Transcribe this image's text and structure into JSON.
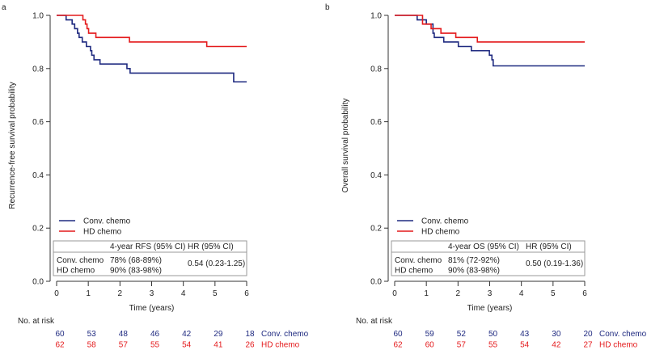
{
  "chart_data": [
    {
      "type": "line",
      "panel_label": "a",
      "ylabel": "Recurrence-free survival probability",
      "xlabel": "Time (years)",
      "xlim": [
        0,
        6
      ],
      "ylim": [
        0,
        1
      ],
      "xticks": [
        "0",
        "1",
        "2",
        "3",
        "4",
        "5",
        "6"
      ],
      "yticks": [
        "0.0",
        "0.2",
        "0.4",
        "0.6",
        "0.8",
        "1.0"
      ],
      "legend": [
        "Conv. chemo",
        "HD chemo"
      ],
      "series": [
        {
          "name": "Conv. chemo",
          "color": "#1f2a80",
          "steps": [
            [
              0,
              1.0
            ],
            [
              0.3,
              0.983
            ],
            [
              0.49,
              0.967
            ],
            [
              0.57,
              0.95
            ],
            [
              0.66,
              0.933
            ],
            [
              0.71,
              0.917
            ],
            [
              0.81,
              0.9
            ],
            [
              0.94,
              0.883
            ],
            [
              1.07,
              0.867
            ],
            [
              1.11,
              0.85
            ],
            [
              1.18,
              0.833
            ],
            [
              1.37,
              0.817
            ],
            [
              2.22,
              0.8
            ],
            [
              2.32,
              0.783
            ],
            [
              5.59,
              0.75
            ],
            [
              6,
              0.75
            ]
          ]
        },
        {
          "name": "HD chemo",
          "color": "#e41a1c",
          "steps": [
            [
              0,
              1.0
            ],
            [
              0.83,
              0.983
            ],
            [
              0.91,
              0.967
            ],
            [
              0.96,
              0.95
            ],
            [
              1.01,
              0.933
            ],
            [
              1.24,
              0.917
            ],
            [
              2.3,
              0.9
            ],
            [
              4.74,
              0.883
            ],
            [
              6,
              0.883
            ]
          ]
        }
      ],
      "table": {
        "headers": [
          "",
          "4-year RFS (95% CI)",
          "HR (95% CI)"
        ],
        "rows": [
          [
            "Conv. chemo",
            "78% (68-89%)"
          ],
          [
            "HD chemo",
            "90% (83-98%)"
          ]
        ],
        "hr": "0.54 (0.23-1.25)"
      },
      "risk": {
        "title": "No. at risk",
        "rows": [
          {
            "name": "Conv. chemo",
            "values": [
              "60",
              "53",
              "48",
              "46",
              "42",
              "29",
              "18"
            ]
          },
          {
            "name": "HD chemo",
            "values": [
              "62",
              "58",
              "57",
              "55",
              "54",
              "41",
              "26"
            ]
          }
        ]
      }
    },
    {
      "type": "line",
      "panel_label": "b",
      "ylabel": "Overall survival probability",
      "xlabel": "Time (years)",
      "xlim": [
        0,
        6
      ],
      "ylim": [
        0,
        1
      ],
      "xticks": [
        "0",
        "1",
        "2",
        "3",
        "4",
        "5",
        "6"
      ],
      "yticks": [
        "0.0",
        "0.2",
        "0.4",
        "0.6",
        "0.8",
        "1.0"
      ],
      "legend": [
        "Conv. chemo",
        "HD chemo"
      ],
      "series": [
        {
          "name": "Conv. chemo",
          "color": "#1f2a80",
          "steps": [
            [
              0,
              1.0
            ],
            [
              0.71,
              0.983
            ],
            [
              1.0,
              0.967
            ],
            [
              1.21,
              0.933
            ],
            [
              1.25,
              0.917
            ],
            [
              1.55,
              0.9
            ],
            [
              2.01,
              0.883
            ],
            [
              2.42,
              0.867
            ],
            [
              2.99,
              0.85
            ],
            [
              3.07,
              0.833
            ],
            [
              3.11,
              0.81
            ],
            [
              6,
              0.81
            ]
          ]
        },
        {
          "name": "HD chemo",
          "color": "#e41a1c",
          "steps": [
            [
              0,
              1.0
            ],
            [
              0.88,
              0.967
            ],
            [
              1.15,
              0.95
            ],
            [
              1.46,
              0.933
            ],
            [
              1.93,
              0.917
            ],
            [
              2.61,
              0.9
            ],
            [
              6,
              0.9
            ]
          ]
        }
      ],
      "table": {
        "headers": [
          "",
          "4-year OS (95% CI)",
          "HR (95% CI)"
        ],
        "rows": [
          [
            "Conv. chemo",
            "81% (72-92%)"
          ],
          [
            "HD chemo",
            "90% (83-98%)"
          ]
        ],
        "hr": "0.50 (0.19-1.36)"
      },
      "risk": {
        "title": "No. at risk",
        "rows": [
          {
            "name": "Conv. chemo",
            "values": [
              "60",
              "59",
              "52",
              "50",
              "43",
              "30",
              "20"
            ]
          },
          {
            "name": "HD chemo",
            "values": [
              "62",
              "60",
              "57",
              "55",
              "54",
              "42",
              "27"
            ]
          }
        ]
      }
    }
  ]
}
